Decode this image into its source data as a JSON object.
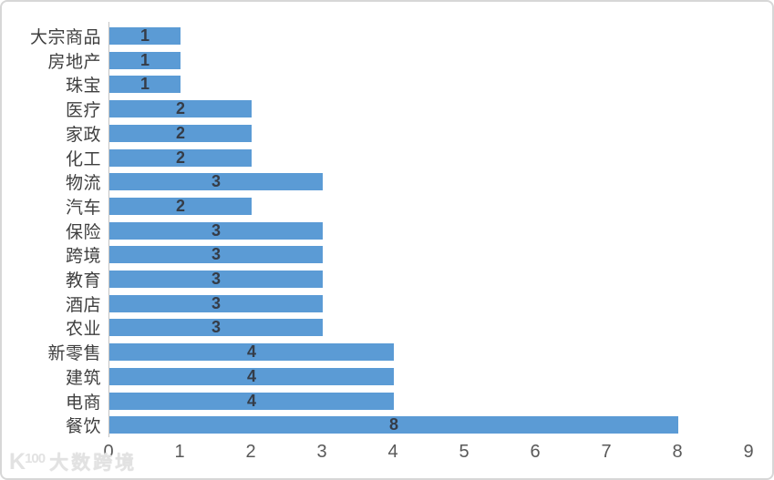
{
  "chart_data": {
    "type": "bar",
    "orientation": "horizontal",
    "title": "",
    "xlabel": "",
    "ylabel": "",
    "categories": [
      "大宗商品",
      "房地产",
      "珠宝",
      "医疗",
      "家政",
      "化工",
      "物流",
      "汽车",
      "保险",
      "跨境",
      "教育",
      "酒店",
      "农业",
      "新零售",
      "建筑",
      "电商",
      "餐饮"
    ],
    "values": [
      1,
      1,
      1,
      2,
      2,
      2,
      3,
      2,
      3,
      3,
      3,
      3,
      3,
      4,
      4,
      4,
      8
    ],
    "xlim": [
      0,
      9
    ],
    "x_ticks": [
      "0",
      "1",
      "2",
      "3",
      "4",
      "5",
      "6",
      "7",
      "8",
      "9"
    ],
    "grid": false,
    "legend": false,
    "data_labels_position": "center",
    "bar_color": "#5B9BD5",
    "data_label_color": "#353C47",
    "category_label_color": "#3F3F3F",
    "tick_label_color": "#595959",
    "axis_line_color": "#C3C3C3"
  },
  "watermark": {
    "logo_main": "K",
    "logo_sup": "100",
    "brand_text": "大数跨境"
  }
}
